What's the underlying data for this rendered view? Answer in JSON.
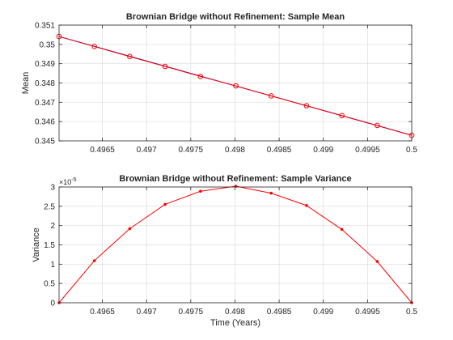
{
  "chart_data": [
    {
      "type": "line",
      "title": "Brownian Bridge without Refinement: Sample Mean",
      "xlabel": "",
      "ylabel": "Mean",
      "xlim": [
        0.49601,
        0.5
      ],
      "ylim": [
        0.345,
        0.351
      ],
      "xticks": [
        0.4965,
        0.497,
        0.4975,
        0.498,
        0.4985,
        0.499,
        0.4995,
        0.5
      ],
      "xticklabels": [
        "0.4965",
        "0.497",
        "0.4975",
        "0.498",
        "0.4985",
        "0.499",
        "0.4995",
        "0.5"
      ],
      "yticks": [
        0.345,
        0.346,
        0.347,
        0.348,
        0.349,
        0.35,
        0.351
      ],
      "yticklabels": [
        "0.345",
        "0.346",
        "0.347",
        "0.348",
        "0.349",
        "0.35",
        "0.351"
      ],
      "grid": true,
      "series": [
        {
          "color": "#0000aa",
          "markers": "none",
          "x": [
            0.49601,
            0.5
          ],
          "y": [
            0.35041,
            0.34529
          ]
        },
        {
          "color": "#ff0000",
          "markers": "circle",
          "x": [
            0.49601,
            0.49641,
            0.49681,
            0.49721,
            0.49761,
            0.49801,
            0.49841,
            0.49881,
            0.49921,
            0.49961,
            0.5
          ],
          "y": [
            0.35041,
            0.34989,
            0.34937,
            0.34886,
            0.34834,
            0.34785,
            0.34733,
            0.34682,
            0.34631,
            0.3458,
            0.34529
          ]
        }
      ]
    },
    {
      "type": "line",
      "title": "Brownian Bridge without Refinement: Sample Variance",
      "xlabel": "Time (Years)",
      "ylabel": "Variance",
      "xlim": [
        0.49601,
        0.5
      ],
      "ylim": [
        0,
        3
      ],
      "yexponent": "-5",
      "xticks": [
        0.4965,
        0.497,
        0.4975,
        0.498,
        0.4985,
        0.499,
        0.4995,
        0.5
      ],
      "xticklabels": [
        "0.4965",
        "0.497",
        "0.4975",
        "0.498",
        "0.4985",
        "0.499",
        "0.4995",
        "0.5"
      ],
      "yticks": [
        0,
        0.5,
        1,
        1.5,
        2,
        2.5,
        3
      ],
      "yticklabels": [
        "0",
        "0.5",
        "1",
        "1.5",
        "2",
        "2.5",
        "3"
      ],
      "grid": true,
      "series": [
        {
          "color": "#ff0000",
          "markers": "dot",
          "x": [
            0.49601,
            0.49641,
            0.49681,
            0.49721,
            0.49761,
            0.49801,
            0.49841,
            0.49881,
            0.49921,
            0.49961,
            0.5
          ],
          "y": [
            0,
            1.09,
            1.92,
            2.55,
            2.89,
            3.02,
            2.84,
            2.52,
            1.9,
            1.07,
            0
          ]
        }
      ]
    }
  ]
}
